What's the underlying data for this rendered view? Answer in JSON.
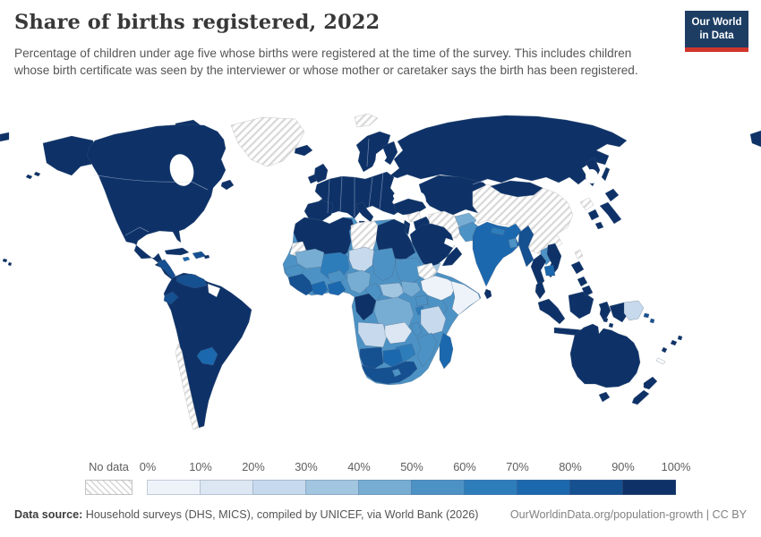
{
  "header": {
    "title": "Share of births registered, 2022",
    "subtitle": "Percentage of children under age five whose births were registered at the time of the survey. This includes children whose birth certificate was seen by the interviewer or whose mother or caretaker says the birth has been registered."
  },
  "logo": {
    "line1": "Our World",
    "line2": "in Data",
    "bg": "#1d3d63",
    "accent": "#d0352c"
  },
  "legend": {
    "nodata_label": "No data",
    "ticks": [
      "0%",
      "10%",
      "20%",
      "30%",
      "40%",
      "50%",
      "60%",
      "70%",
      "80%",
      "90%",
      "100%"
    ],
    "colors": [
      "#eef3fa",
      "#dce7f3",
      "#c7d9ec",
      "#a2c5e0",
      "#77add3",
      "#4d92c4",
      "#2e7dbb",
      "#1c68ae",
      "#155091",
      "#0e3268"
    ]
  },
  "footer": {
    "source_label": "Data source:",
    "source_text": " Household surveys (DHS, MICS), compiled by UNICEF, via World Bank (2026)",
    "link": "OurWorldinData.org/population-growth | CC BY"
  },
  "chart_data": {
    "type": "choropleth-map",
    "title": "Share of births registered, 2022",
    "unit": "%",
    "bins": [
      "0-10%",
      "10-20%",
      "20-30%",
      "30-40%",
      "40-50%",
      "50-60%",
      "60-70%",
      "70-80%",
      "80-90%",
      "90-100%",
      "No data"
    ],
    "legend_position": "bottom",
    "notes": "Values encoded per region in map.regions as bin index 0-9, 'nodata' (hatched) or 'white'."
  },
  "map": {
    "nodata_stroke": "#c5c5c5",
    "regions": {
      "greenland": "nodata",
      "alaska": 9,
      "arctic-islands": 9,
      "north-america": 9,
      "newfoundland": 9,
      "cuba": 9,
      "hispaniola": 8,
      "jamaica": 7,
      "puerto-rico": 9,
      "central-america-patch": 8,
      "hawaii": 9,
      "south-america": 9,
      "venezuela": 8,
      "ecuador": 8,
      "guyana-suriname": "white",
      "paraguay": 7,
      "chile": "nodata",
      "iceland": 9,
      "uk": 9,
      "ireland": 9,
      "scandinavia": 9,
      "finland": 9,
      "europe-mainland": 9,
      "iberia": 9,
      "italy": 9,
      "svalbard": "nodata",
      "russia": 9,
      "kamchatka": 9,
      "sakhalin": 9,
      "chukotka-east": 9,
      "chukotka-west": 9,
      "central-asia": 9,
      "kyrgyz-tajik": "white",
      "china": "nodata",
      "mongolia": 9,
      "north-korea": "nodata",
      "south-korea": 9,
      "japan": 9,
      "taiwan": "nodata",
      "turkey": 9,
      "syria": "nodata",
      "levant": 9,
      "iraq": 9,
      "iran": "nodata",
      "saudi-arabia": 9,
      "yemen": 3,
      "oman": 9,
      "afghanistan": 4,
      "pakistan": 5,
      "india": 7,
      "nepal": 6,
      "bangladesh": 5,
      "sri-lanka": 9,
      "myanmar": 8,
      "thailand": 9,
      "laos": 5,
      "vietnam": 9,
      "cambodia": 7,
      "malay-peninsula": 9,
      "sumatra": 9,
      "java": 9,
      "borneo": 9,
      "sulawesi": 9,
      "moluccas": 9,
      "lesser-sunda": 9,
      "philippines": 9,
      "west-papua": 9,
      "papua-new-guinea": 2,
      "solomon-islands": 8,
      "pacific-islands": 9,
      "new-caledonia": "white",
      "australia": 9,
      "tasmania": 9,
      "new-zealand": 9,
      "africa-base": 5,
      "morocco-algeria-tunisia": 9,
      "libya": "nodata",
      "egypt": 9,
      "western-sahara": "nodata",
      "mauritania": 4,
      "mali": 6,
      "niger": 2,
      "chad": 5,
      "sudan": 5,
      "eritrea": "nodata",
      "ethiopia": 0,
      "somalia": 0,
      "senegal": 5,
      "guinea-group": 8,
      "burkina-faso": 5,
      "cote-divoire": 7,
      "ghana-togo-benin": 7,
      "nigeria": 4,
      "cameroon": 5,
      "central-african-republic": 3,
      "south-sudan": 4,
      "uganda": 5,
      "kenya": 5,
      "rwanda-burundi": 6,
      "gabon-congo": 9,
      "dr-congo": 4,
      "tanzania": 2,
      "angola": 2,
      "zambia": 1,
      "malawi": 5,
      "mozambique": 5,
      "zimbabwe": 6,
      "namibia": 8,
      "botswana": 7,
      "south-africa": 8,
      "lesotho": 5,
      "madagascar": 7
    }
  }
}
